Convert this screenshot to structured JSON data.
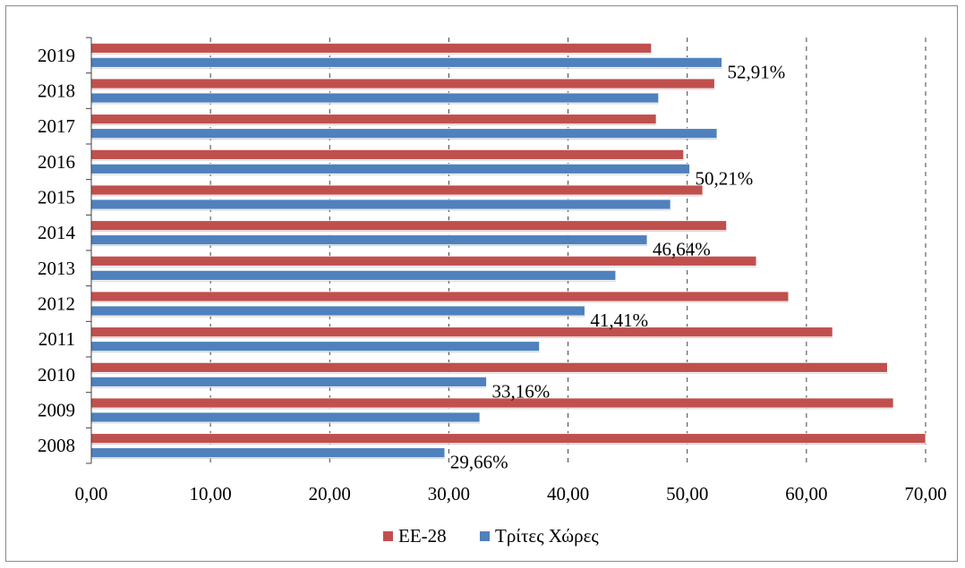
{
  "chart_data": {
    "type": "bar",
    "orientation": "horizontal",
    "categories": [
      "2008",
      "2009",
      "2010",
      "2011",
      "2012",
      "2013",
      "2014",
      "2015",
      "2016",
      "2017",
      "2018",
      "2019"
    ],
    "series": [
      {
        "name": "ΕΕ-28",
        "color": "#c0504d",
        "values": [
          70.0,
          67.3,
          66.8,
          62.2,
          58.5,
          55.8,
          53.3,
          51.3,
          49.7,
          47.4,
          52.3,
          47.0
        ]
      },
      {
        "name": "Τρίτες Χώρες",
        "color": "#4f81bd",
        "values": [
          29.66,
          32.6,
          33.16,
          37.6,
          41.41,
          44.0,
          46.64,
          48.6,
          50.21,
          52.5,
          47.6,
          52.91
        ]
      }
    ],
    "data_labels": [
      {
        "series": 1,
        "category": "2008",
        "text": "29,66%"
      },
      {
        "series": 1,
        "category": "2010",
        "text": "33,16%"
      },
      {
        "series": 1,
        "category": "2012",
        "text": "41,41%"
      },
      {
        "series": 1,
        "category": "2014",
        "text": "46,64%"
      },
      {
        "series": 1,
        "category": "2016",
        "text": "50,21%"
      },
      {
        "series": 1,
        "category": "2019",
        "text": "52,91%"
      }
    ],
    "x_ticks": [
      "0,00",
      "10,00",
      "20,00",
      "30,00",
      "40,00",
      "50,00",
      "60,00",
      "70,00"
    ],
    "xlim": [
      0,
      70
    ],
    "grid": "vertical dashed",
    "legend_position": "bottom"
  }
}
